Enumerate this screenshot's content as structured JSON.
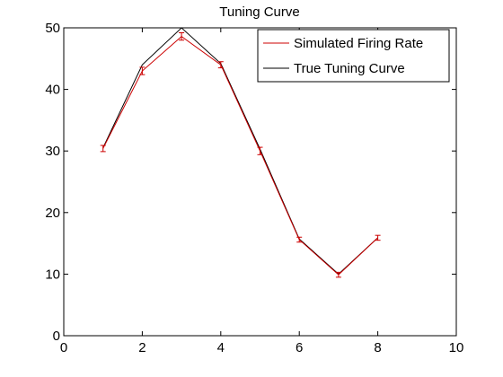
{
  "chart_data": {
    "type": "line",
    "title": "Tuning Curve",
    "xlabel": "",
    "ylabel": "",
    "xlim": [
      0,
      10
    ],
    "ylim": [
      0,
      50
    ],
    "xticks": [
      0,
      2,
      4,
      6,
      8,
      10
    ],
    "yticks": [
      0,
      10,
      20,
      30,
      40,
      50
    ],
    "grid": false,
    "legend_position": "top-right",
    "series": [
      {
        "name": "Simulated Firing Rate",
        "color": "#cc0000",
        "x": [
          1,
          2,
          3,
          4,
          5,
          6,
          7,
          8
        ],
        "y": [
          30.4,
          43.0,
          48.6,
          44.0,
          30.0,
          15.6,
          9.9,
          15.9
        ],
        "error": [
          0.5,
          0.6,
          0.6,
          0.5,
          0.6,
          0.4,
          0.4,
          0.4
        ]
      },
      {
        "name": "True Tuning Curve",
        "color": "#000000",
        "x": [
          1,
          2,
          3,
          4,
          5,
          6,
          7,
          8
        ],
        "y": [
          30.5,
          44.0,
          50.0,
          44.2,
          30.3,
          15.7,
          10.0,
          15.9
        ]
      }
    ]
  }
}
